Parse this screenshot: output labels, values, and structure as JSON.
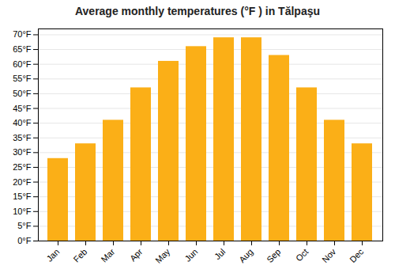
{
  "chart_data": {
    "type": "bar",
    "title": "Average monthly temperatures (°F ) in Tălpaşu",
    "categories": [
      "Jan",
      "Feb",
      "Mar",
      "Apr",
      "May",
      "Jun",
      "Jul",
      "Aug",
      "Sep",
      "Oct",
      "Nov",
      "Dec"
    ],
    "values": [
      28,
      33,
      41,
      52,
      61,
      66,
      69,
      69,
      63,
      52,
      41,
      33
    ],
    "color": "#FBAF17",
    "ylim": [
      0,
      72
    ],
    "yticks": [
      {
        "value": 0,
        "label": "0°F"
      },
      {
        "value": 5,
        "label": "5°F"
      },
      {
        "value": 10,
        "label": "10°F"
      },
      {
        "value": 15,
        "label": "15°F"
      },
      {
        "value": 20,
        "label": "20°F"
      },
      {
        "value": 25,
        "label": "25°F"
      },
      {
        "value": 30,
        "label": "30°F"
      },
      {
        "value": 35,
        "label": "35°F"
      },
      {
        "value": 40,
        "label": "40°F"
      },
      {
        "value": 45,
        "label": "45°F"
      },
      {
        "value": 50,
        "label": "50°F"
      },
      {
        "value": 55,
        "label": "55°F"
      },
      {
        "value": 60,
        "label": "60°F"
      },
      {
        "value": 65,
        "label": "65°F"
      },
      {
        "value": 70,
        "label": "70°F"
      }
    ],
    "grid": true
  }
}
